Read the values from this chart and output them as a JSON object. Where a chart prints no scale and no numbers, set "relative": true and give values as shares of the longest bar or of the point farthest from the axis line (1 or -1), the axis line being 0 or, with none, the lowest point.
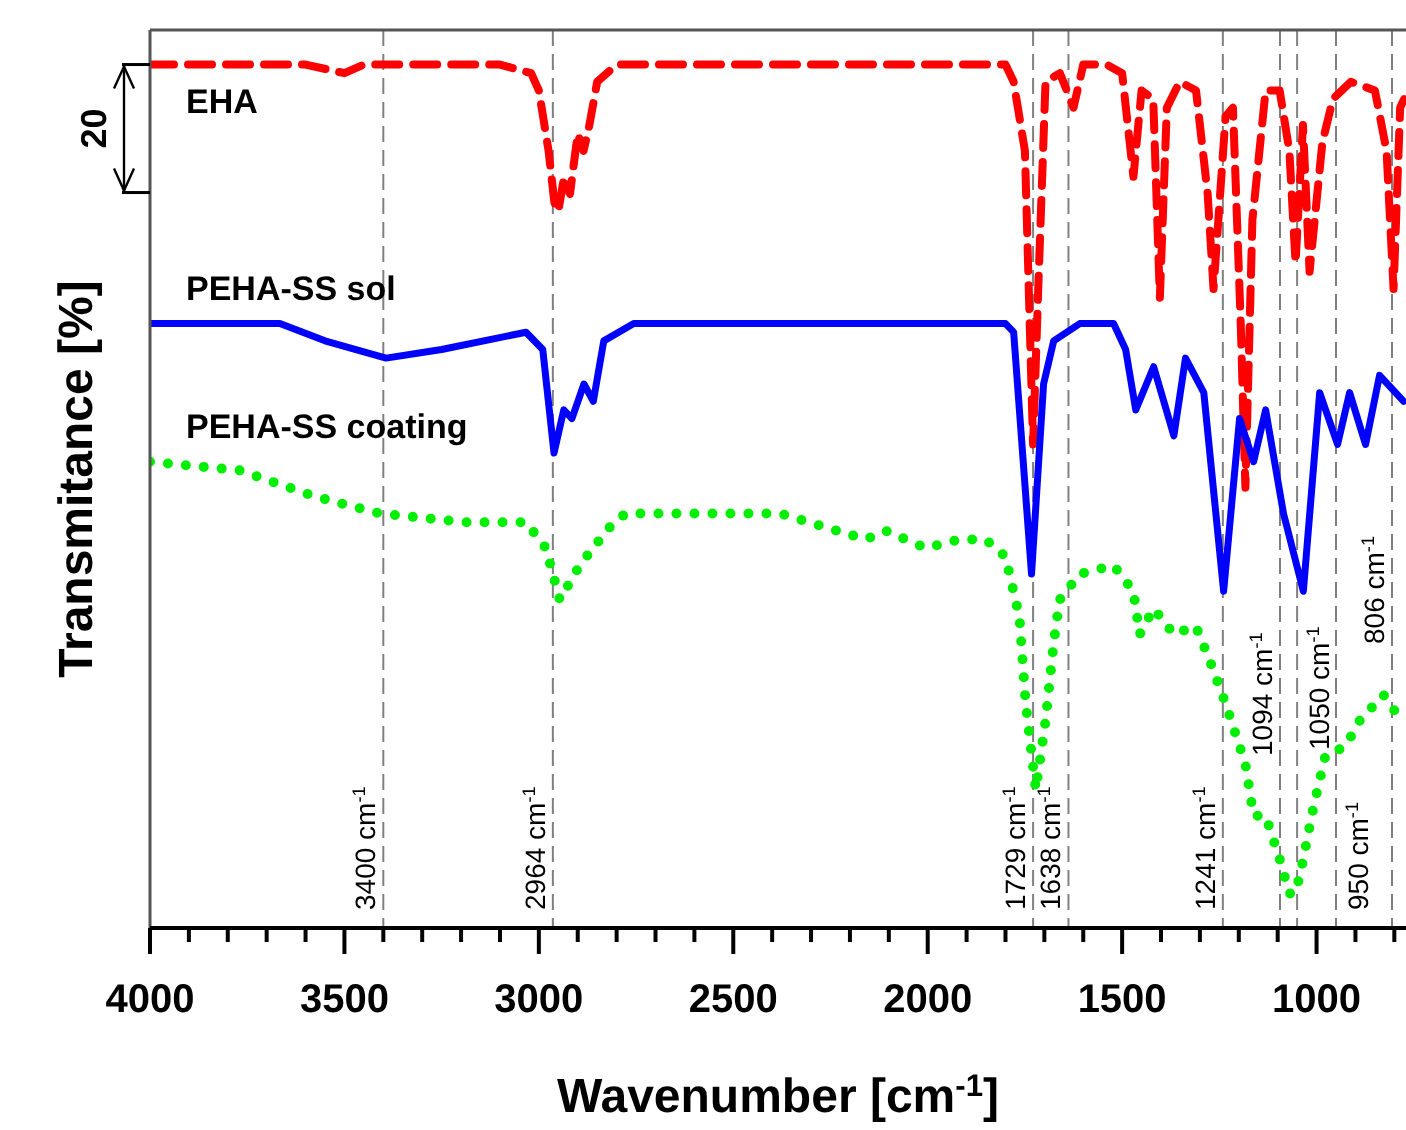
{
  "chart_data": {
    "type": "line",
    "xlabel": "Wavenumber [cm$^{-1}$]",
    "ylabel": "Transmitance [%]",
    "relative": true,
    "xlim": [
      4000,
      770
    ],
    "xticks": [
      4000,
      {
        "value": 3900,
        "label": null
      },
      {
        "value": 3800,
        "label": null
      },
      {
        "value": 3700,
        "label": null
      },
      {
        "value": 3600,
        "label": null
      },
      3500,
      {
        "value": 3400,
        "label": null
      },
      {
        "value": 3300,
        "label": null
      },
      {
        "value": 3200,
        "label": null
      },
      {
        "value": 3100,
        "label": null
      },
      3000,
      {
        "value": 2900,
        "label": null
      },
      {
        "value": 2800,
        "label": null
      },
      {
        "value": 2700,
        "label": null
      },
      {
        "value": 2600,
        "label": null
      },
      2500,
      {
        "value": 2400,
        "label": null
      },
      {
        "value": 2300,
        "label": null
      },
      {
        "value": 2200,
        "label": null
      },
      {
        "value": 2100,
        "label": null
      },
      2000,
      {
        "value": 1900,
        "label": null
      },
      {
        "value": 1800,
        "label": null
      },
      {
        "value": 1700,
        "label": null
      },
      {
        "value": 1600,
        "label": null
      },
      1500,
      {
        "value": 1400,
        "label": null
      },
      {
        "value": 1300,
        "label": null
      },
      {
        "value": 1200,
        "label": null
      },
      {
        "value": 1100,
        "label": null
      },
      1000,
      {
        "value": 900,
        "label": null
      },
      {
        "value": 800,
        "label": null
      }
    ],
    "series": [
      {
        "name": "EHA",
        "color": "#ff0000",
        "line_style": "dashed",
        "x": [
          4000,
          3600,
          3500,
          3450,
          3100,
          3020,
          3000,
          2975,
          2960,
          2950,
          2935,
          2920,
          2900,
          2885,
          2870,
          2850,
          2800,
          2000,
          1800,
          1779,
          1750,
          1729,
          1715,
          1697,
          1660,
          1625,
          1600,
          1540,
          1500,
          1471,
          1450,
          1420,
          1403,
          1385,
          1352,
          1310,
          1280,
          1265,
          1234,
          1215,
          1195,
          1183,
          1165,
          1131,
          1095,
          1070,
          1054,
          1035,
          1018,
          985,
          958,
          912,
          850,
          820,
          802,
          785,
          775
        ],
        "values": [
          1.0,
          1.0,
          0.99,
          1.0,
          1.0,
          0.99,
          0.97,
          0.9,
          0.84,
          0.83,
          0.87,
          0.85,
          0.92,
          0.9,
          0.93,
          0.98,
          1.0,
          1.0,
          1.0,
          0.98,
          0.9,
          0.56,
          0.75,
          0.98,
          0.99,
          0.95,
          1.0,
          1.0,
          0.99,
          0.87,
          0.97,
          0.96,
          0.73,
          0.95,
          0.98,
          0.97,
          0.85,
          0.74,
          0.94,
          0.95,
          0.7,
          0.51,
          0.82,
          0.97,
          0.97,
          0.9,
          0.77,
          0.93,
          0.76,
          0.91,
          0.96,
          0.98,
          0.97,
          0.9,
          0.74,
          0.95,
          0.96
        ]
      },
      {
        "name": "PEHA-SS sol",
        "color": "#0000ff",
        "line_style": "solid",
        "x": [
          4000,
          3666,
          3550,
          3393,
          3250,
          3033,
          2990,
          2961,
          2936,
          2915,
          2884,
          2860,
          2833,
          2756,
          2500,
          1800,
          1779,
          1733,
          1702,
          1676,
          1609,
          1522,
          1491,
          1465,
          1419,
          1367,
          1337,
          1290,
          1239,
          1198,
          1162,
          1131,
          1085,
          1034,
          992,
          946,
          915,
          874,
          838,
          776
        ],
        "values": [
          0.7,
          0.7,
          0.68,
          0.66,
          0.67,
          0.69,
          0.67,
          0.55,
          0.6,
          0.59,
          0.63,
          0.61,
          0.68,
          0.7,
          0.7,
          0.7,
          0.69,
          0.41,
          0.63,
          0.68,
          0.7,
          0.7,
          0.67,
          0.6,
          0.65,
          0.57,
          0.66,
          0.62,
          0.39,
          0.59,
          0.54,
          0.6,
          0.48,
          0.39,
          0.62,
          0.56,
          0.62,
          0.56,
          0.64,
          0.61
        ]
      },
      {
        "name": "PEHA-SS coating",
        "color": "#00ee00",
        "line_style": "dotted",
        "x": [
          4000,
          3769,
          3578,
          3409,
          3188,
          3033,
          2982,
          2946,
          2895,
          2843,
          2807,
          2776,
          2673,
          2380,
          2159,
          2108,
          2005,
          1918,
          1851,
          1800,
          1764,
          1748,
          1722,
          1697,
          1676,
          1661,
          1609,
          1522,
          1471,
          1455,
          1419,
          1367,
          1311,
          1275,
          1234,
          1183,
          1162,
          1131,
          1095,
          1070,
          1054,
          1034,
          1008,
          977,
          926,
          889,
          828,
          797,
          771
        ],
        "values": [
          0.54,
          0.53,
          0.5,
          0.48,
          0.47,
          0.47,
          0.44,
          0.38,
          0.42,
          0.45,
          0.47,
          0.48,
          0.48,
          0.48,
          0.45,
          0.46,
          0.44,
          0.45,
          0.45,
          0.43,
          0.36,
          0.26,
          0.16,
          0.24,
          0.33,
          0.38,
          0.41,
          0.42,
          0.39,
          0.34,
          0.37,
          0.34,
          0.35,
          0.31,
          0.26,
          0.19,
          0.13,
          0.13,
          0.08,
          0.04,
          0.04,
          0.08,
          0.14,
          0.2,
          0.21,
          0.24,
          0.27,
          0.25,
          0.24
        ]
      }
    ],
    "ref_lines": [
      {
        "axis": "x",
        "value": 3400,
        "label": "3400 cm$^{-1}$",
        "color": "#808080",
        "line_style": "dashed"
      },
      {
        "axis": "x",
        "value": 2964,
        "label": "2964 cm$^{-1}$",
        "color": "#808080",
        "line_style": "dashed"
      },
      {
        "axis": "x",
        "value": 1729,
        "label": "1729 cm$^{-1}$",
        "color": "#808080",
        "line_style": "dashed"
      },
      {
        "axis": "x",
        "value": 1638,
        "label": "1638 cm$^{-1}$",
        "color": "#808080",
        "line_style": "dashed"
      },
      {
        "axis": "x",
        "value": 1241,
        "label": "1241 cm$^{-1}$",
        "color": "#808080",
        "line_style": "dashed"
      },
      {
        "axis": "x",
        "value": 1094,
        "label": "1094 cm$^{-1}$",
        "color": "#808080",
        "line_style": "dashed"
      },
      {
        "axis": "x",
        "value": 1050,
        "label": "1050 cm$^{-1}$",
        "color": "#808080",
        "line_style": "dashed"
      },
      {
        "axis": "x",
        "value": 950,
        "label": "950 cm$^{-1}$",
        "color": "#808080",
        "line_style": "dashed"
      },
      {
        "axis": "x",
        "value": 806,
        "label": "806 cm$^{-1}$",
        "color": "#808080",
        "line_style": "dashed"
      }
    ],
    "annotations": [
      "20"
    ]
  }
}
